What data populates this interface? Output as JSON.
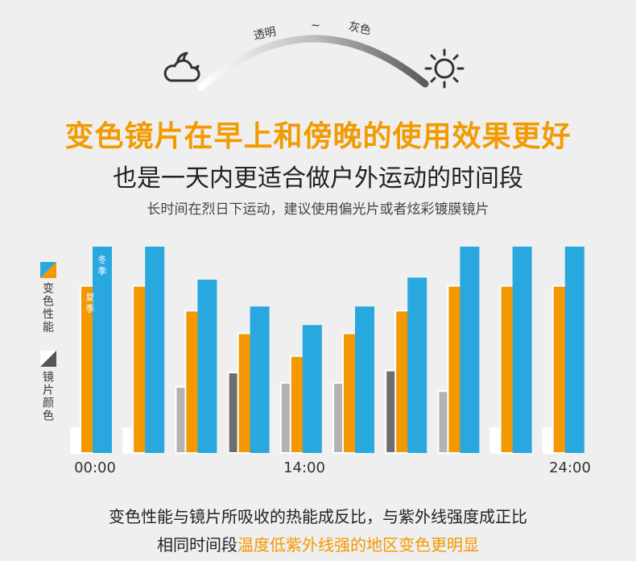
{
  "header": {
    "arc_label_left": "透明",
    "arc_label_mid": "~",
    "arc_label_right": "灰色",
    "moon_icon": "moon-cloud-icon",
    "sun_icon": "sun-icon"
  },
  "title": "变色镜片在早上和傍晚的使用效果更好",
  "subtitle": "也是一天内更适合做户外运动的时间段",
  "note": "长时间在烈日下运动，建议使用偏光片或者炫彩镀膜镜片",
  "legend": {
    "performance_label": "变色性能",
    "lens_color_label": "镜片颜色"
  },
  "colors": {
    "winter": "#29a8e0",
    "summer": "#f39800",
    "lens_light": "#ffffff",
    "lens_mid": "#b3b3b3",
    "lens_dark": "#6e6e6e",
    "accent": "#f29a00"
  },
  "chart_data": {
    "type": "bar",
    "series_labels": [
      "冬季",
      "夏季"
    ],
    "x_tick_labels": [
      "00:00",
      "14:00",
      "24:00"
    ],
    "groups": [
      {
        "winter": 100,
        "summer": 81,
        "lens": 12,
        "lens_tone": "light"
      },
      {
        "winter": 100,
        "summer": 81,
        "lens": 12,
        "lens_tone": "light"
      },
      {
        "winter": 84,
        "summer": 69,
        "lens": 32,
        "lens_tone": "mid"
      },
      {
        "winter": 71,
        "summer": 58,
        "lens": 39,
        "lens_tone": "dark"
      },
      {
        "winter": 62,
        "summer": 47,
        "lens": 34,
        "lens_tone": "mid"
      },
      {
        "winter": 71,
        "summer": 58,
        "lens": 34,
        "lens_tone": "mid"
      },
      {
        "winter": 85,
        "summer": 69,
        "lens": 40,
        "lens_tone": "dark"
      },
      {
        "winter": 100,
        "summer": 81,
        "lens": 30,
        "lens_tone": "mid"
      },
      {
        "winter": 100,
        "summer": 81,
        "lens": 12,
        "lens_tone": "light"
      },
      {
        "winter": 100,
        "summer": 81,
        "lens": 12,
        "lens_tone": "light"
      }
    ]
  },
  "footer": {
    "line1": "变色性能与镜片所吸收的热能成反比，与紫外线强度成正比",
    "line2_prefix": "相同时间段",
    "line2_highlight": "温度低紫外线强的地区变色更明显"
  }
}
